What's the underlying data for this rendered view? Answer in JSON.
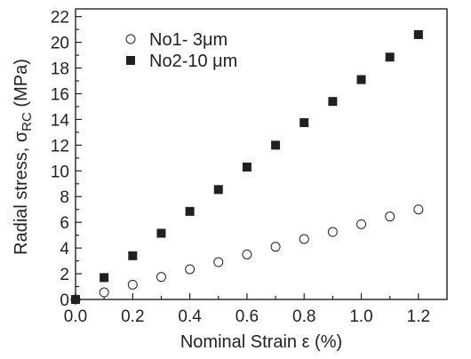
{
  "chart_data": {
    "type": "scatter",
    "xlabel": "Nominal Strain ε (%)",
    "ylabel": {
      "prefix": "Radial stress, ",
      "symbol": "σ",
      "subscript": "RC",
      "suffix": " (MPa)"
    },
    "xlim": [
      0.0,
      1.3
    ],
    "ylim": [
      0,
      22.6
    ],
    "x_ticks": [
      "0.0",
      "0.2",
      "0.4",
      "0.6",
      "0.8",
      "1.0",
      "1.2"
    ],
    "y_ticks": [
      "0",
      "2",
      "4",
      "6",
      "8",
      "10",
      "12",
      "14",
      "16",
      "18",
      "20",
      "22"
    ],
    "grid": false,
    "legend_position": "top-left",
    "series": [
      {
        "name": "No1- 3μm",
        "marker": "open-circle",
        "color": "#231f20",
        "x": [
          0.0,
          0.1,
          0.2,
          0.3,
          0.4,
          0.5,
          0.6,
          0.7,
          0.8,
          0.9,
          1.0,
          1.1,
          1.2
        ],
        "y": [
          0.0,
          0.55,
          1.15,
          1.75,
          2.35,
          2.9,
          3.5,
          4.1,
          4.7,
          5.25,
          5.85,
          6.45,
          7.0
        ]
      },
      {
        "name": "No2-10 μm",
        "marker": "filled-square",
        "color": "#231f20",
        "x": [
          0.0,
          0.1,
          0.2,
          0.3,
          0.4,
          0.5,
          0.6,
          0.7,
          0.8,
          0.9,
          1.0,
          1.1,
          1.2
        ],
        "y": [
          0.0,
          1.7,
          3.4,
          5.15,
          6.85,
          8.55,
          10.3,
          12.0,
          13.75,
          15.4,
          17.1,
          18.85,
          20.6
        ]
      }
    ]
  }
}
